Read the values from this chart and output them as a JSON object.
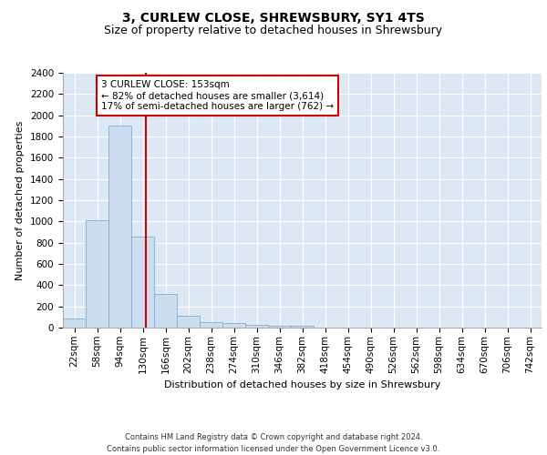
{
  "title": "3, CURLEW CLOSE, SHREWSBURY, SY1 4TS",
  "subtitle": "Size of property relative to detached houses in Shrewsbury",
  "xlabel": "Distribution of detached houses by size in Shrewsbury",
  "ylabel": "Number of detached properties",
  "bin_labels": [
    "22sqm",
    "58sqm",
    "94sqm",
    "130sqm",
    "166sqm",
    "202sqm",
    "238sqm",
    "274sqm",
    "310sqm",
    "346sqm",
    "382sqm",
    "418sqm",
    "454sqm",
    "490sqm",
    "526sqm",
    "562sqm",
    "598sqm",
    "634sqm",
    "670sqm",
    "706sqm",
    "742sqm"
  ],
  "bar_heights": [
    85,
    1010,
    1900,
    860,
    315,
    115,
    55,
    45,
    30,
    20,
    20,
    0,
    0,
    0,
    0,
    0,
    0,
    0,
    0,
    0,
    0
  ],
  "bar_color": "#ccddf0",
  "bar_edge_color": "#88aacc",
  "vline_color": "#cc0000",
  "annotation_text": "3 CURLEW CLOSE: 153sqm\n← 82% of detached houses are smaller (3,614)\n17% of semi-detached houses are larger (762) →",
  "annotation_box_color": "#ffffff",
  "annotation_box_edge": "#cc0000",
  "ylim": [
    0,
    2400
  ],
  "yticks": [
    0,
    200,
    400,
    600,
    800,
    1000,
    1200,
    1400,
    1600,
    1800,
    2000,
    2200,
    2400
  ],
  "background_color": "#dde8f5",
  "footer": "Contains HM Land Registry data © Crown copyright and database right 2024.\nContains public sector information licensed under the Open Government Licence v3.0.",
  "title_fontsize": 10,
  "subtitle_fontsize": 9,
  "xlabel_fontsize": 8,
  "ylabel_fontsize": 8,
  "tick_fontsize": 7.5,
  "annotation_fontsize": 7.5,
  "footer_fontsize": 6
}
